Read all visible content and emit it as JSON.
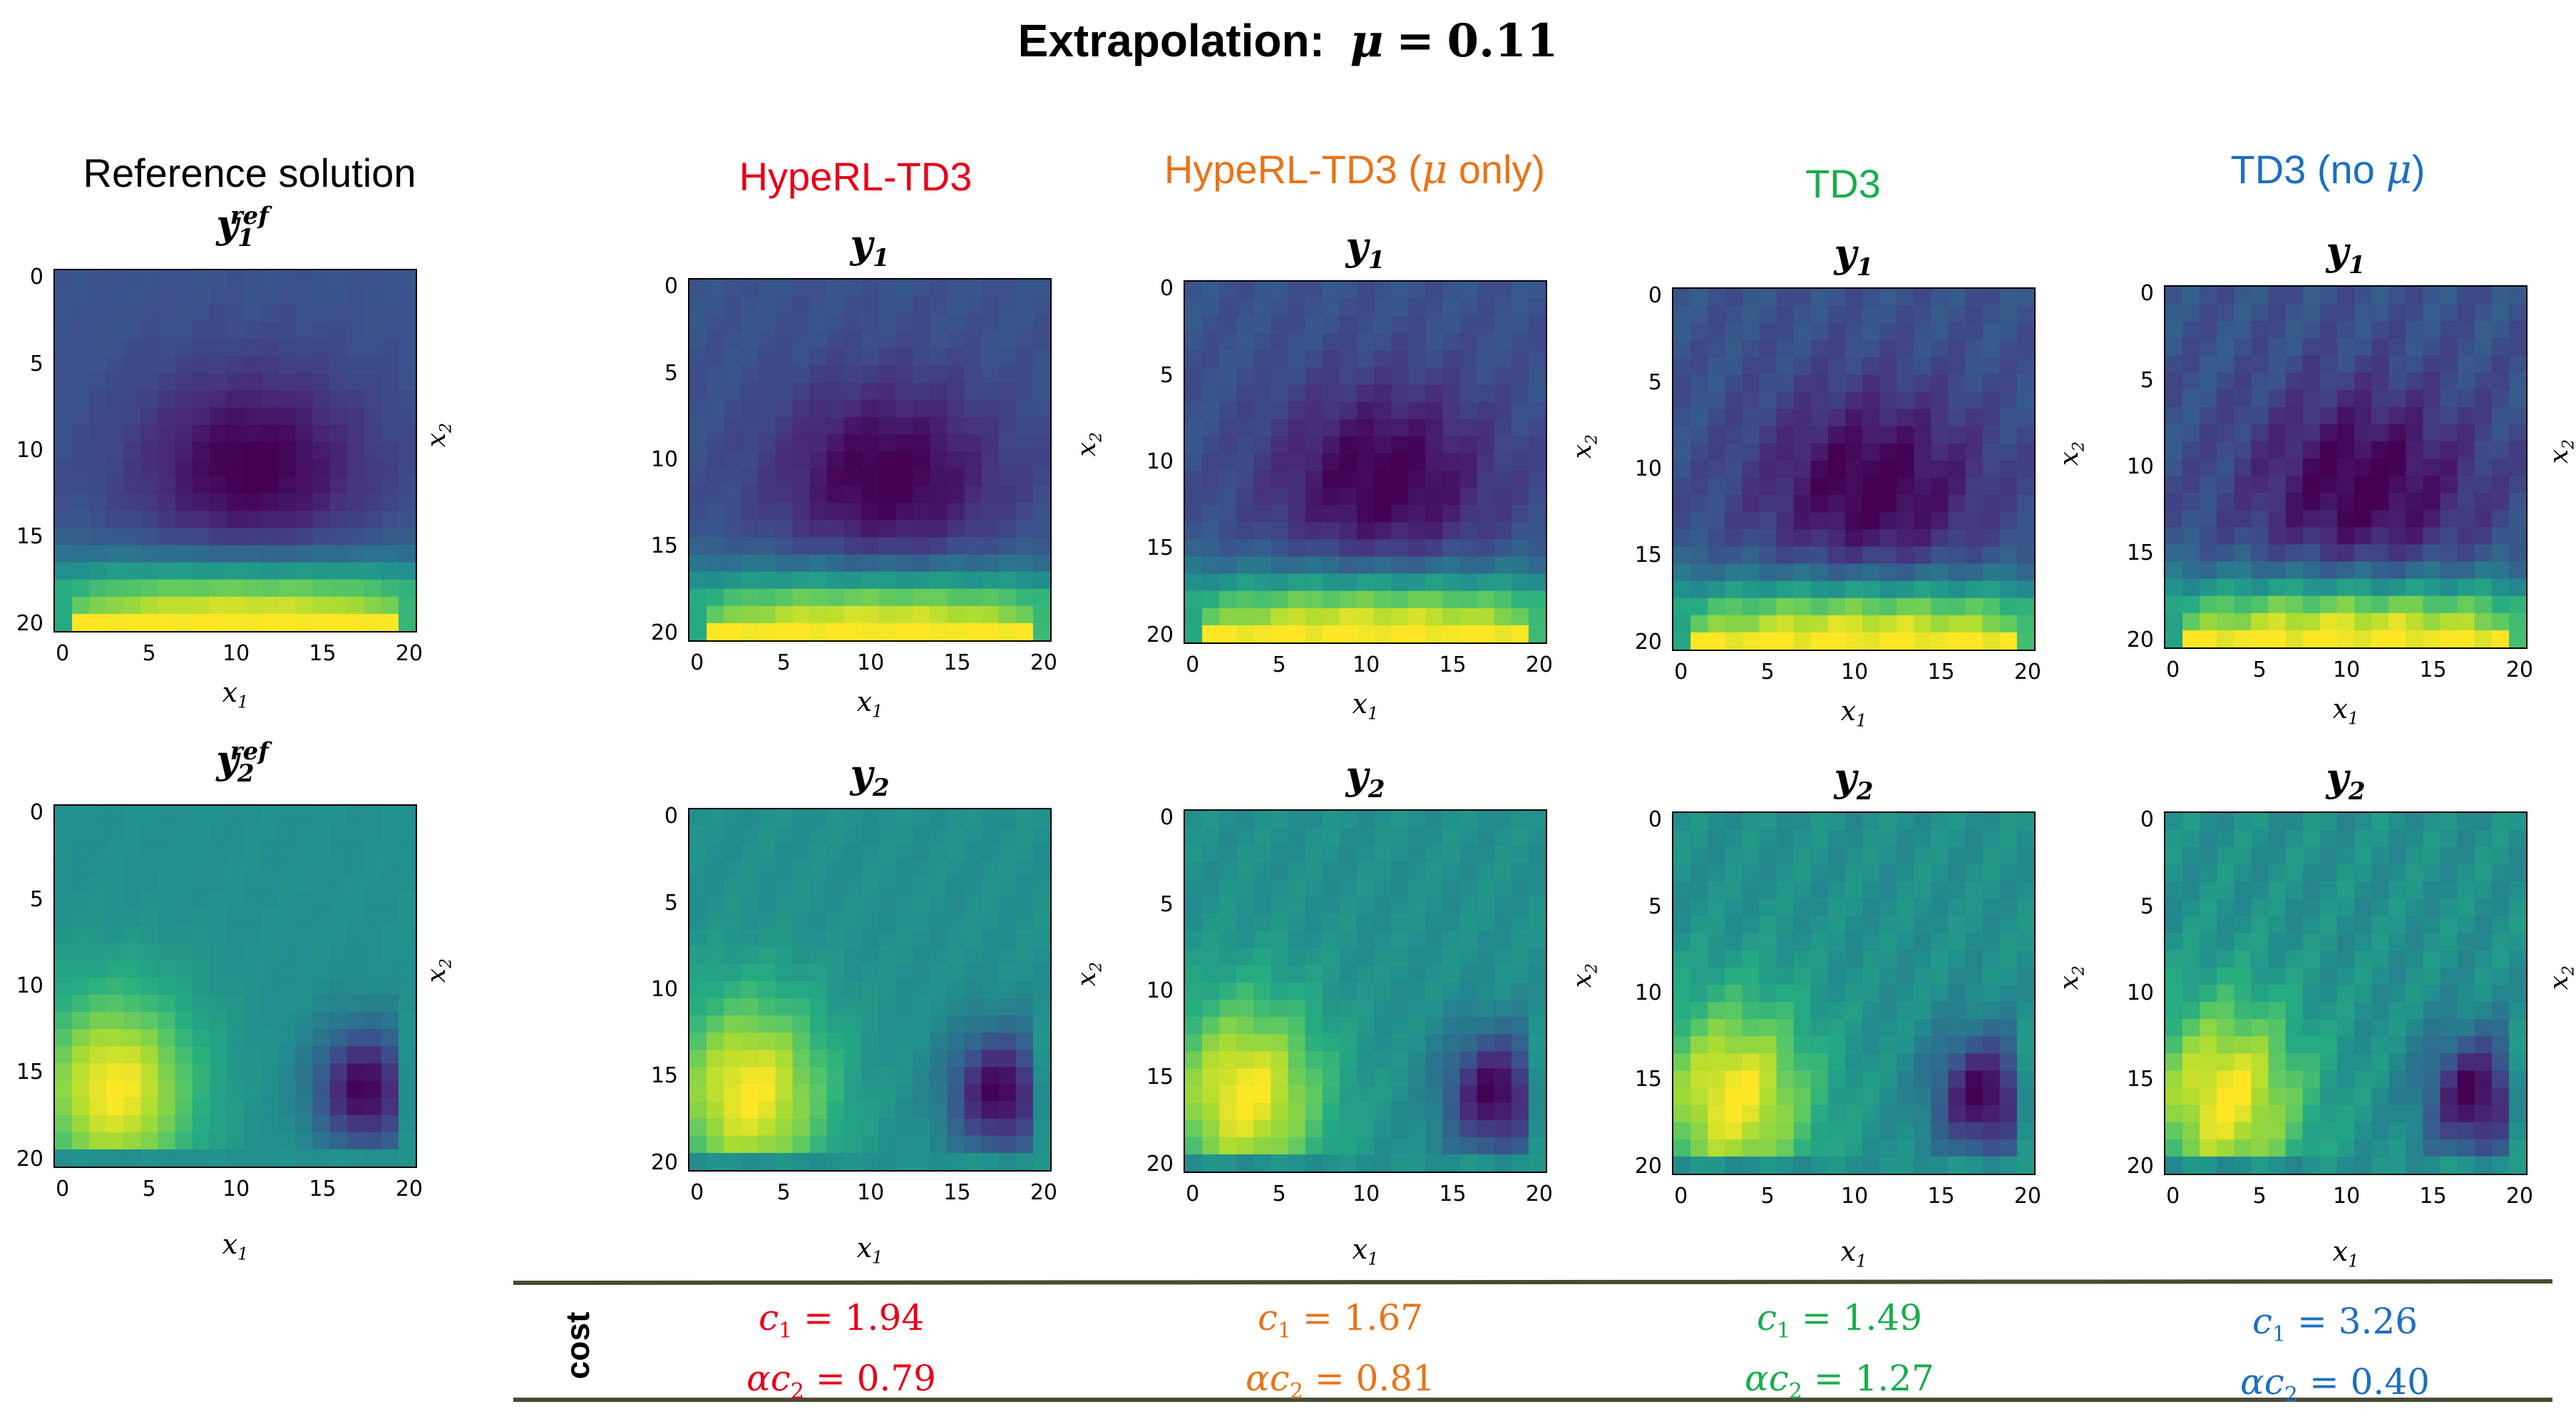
{
  "title": {
    "text": "Extrapolation:",
    "mu_symbol": "μ",
    "equals": "=",
    "value": "0.11"
  },
  "columns": [
    {
      "id": "ref",
      "header": "Reference solution",
      "header_color": "#000000",
      "y1_title": "y",
      "y1_sub": "1",
      "y1_sup": "ref",
      "y2_title": "y",
      "y2_sub": "2",
      "y2_sup": "ref"
    },
    {
      "id": "hyperl",
      "header": "HypeRL-TD3",
      "header_color": "#e8001a",
      "y1_title": "y",
      "y1_sub": "1",
      "y2_title": "y",
      "y2_sub": "2"
    },
    {
      "id": "hyperl-mu",
      "header_pre": "HypeRL-TD3 (",
      "header_mu": "μ",
      "header_post": " only)",
      "header_color": "#e8741a",
      "y1_title": "y",
      "y1_sub": "1",
      "y2_title": "y",
      "y2_sub": "2"
    },
    {
      "id": "td3",
      "header": "TD3",
      "header_color": "#1aad4c",
      "y1_title": "y",
      "y1_sub": "1",
      "y2_title": "y",
      "y2_sub": "2"
    },
    {
      "id": "td3-nomu",
      "header_pre": "TD3 (no ",
      "header_mu": "μ",
      "header_post": ")",
      "header_color": "#1c6fc2",
      "y1_title": "y",
      "y1_sub": "1",
      "y2_title": "y",
      "y2_sub": "2"
    }
  ],
  "axes": {
    "ticks": [
      "0",
      "5",
      "10",
      "15",
      "20"
    ],
    "x_label": "x",
    "x_sub": "1",
    "y_label": "x",
    "y_sub": "2"
  },
  "cost": {
    "label": "cost",
    "entries": [
      {
        "c1": "1.94",
        "ac2": "0.79",
        "color": "#e8001a"
      },
      {
        "c1": "1.67",
        "ac2": "0.81",
        "color": "#e8741a"
      },
      {
        "c1": "1.49",
        "ac2": "1.27",
        "color": "#1aad4c"
      },
      {
        "c1": "3.26",
        "ac2": "0.40",
        "color": "#1c6fc2"
      }
    ],
    "c_sym": "c",
    "c1_sub": "1",
    "alpha_sym": "α",
    "c2_sub": "2",
    "equals": "="
  },
  "colormap": [
    "#440154",
    "#472c7a",
    "#3b518b",
    "#2c718e",
    "#21908d",
    "#27ad81",
    "#5cc863",
    "#aadc32",
    "#fde725"
  ]
}
